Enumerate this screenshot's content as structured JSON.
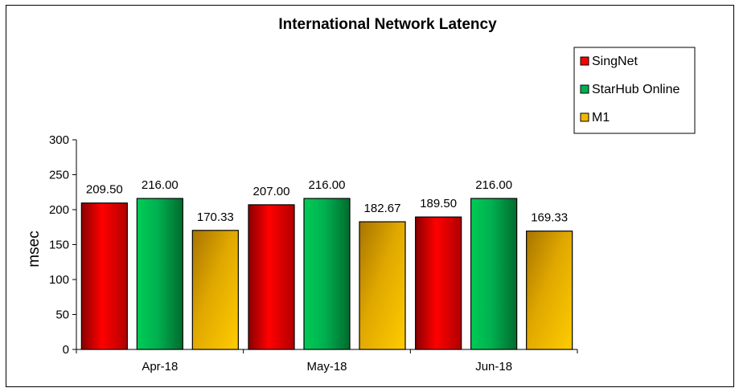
{
  "chart_data": {
    "type": "bar",
    "title": "International Network Latency",
    "xlabel": "",
    "ylabel": "msec",
    "ylim": [
      0,
      300
    ],
    "yticks": [
      0,
      50,
      100,
      150,
      200,
      250,
      300
    ],
    "categories": [
      "Apr-18",
      "May-18",
      "Jun-18"
    ],
    "series": [
      {
        "name": "SingNet",
        "values": [
          209.5,
          207.0,
          189.5
        ],
        "labels": [
          "209.50",
          "207.00",
          "189.50"
        ],
        "color": "#ff0000",
        "gradient": [
          "#8a0000",
          "#ff0000",
          "#b00000"
        ]
      },
      {
        "name": "StarHub Online",
        "values": [
          216.0,
          216.0,
          216.0
        ],
        "labels": [
          "216.00",
          "216.00",
          "216.00"
        ],
        "color": "#00b050",
        "gradient": [
          "#00cc55",
          "#00b050",
          "#006b2e"
        ]
      },
      {
        "name": "M1",
        "values": [
          170.33,
          182.67,
          169.33
        ],
        "labels": [
          "170.33",
          "182.67",
          "169.33"
        ],
        "color": "#f0b800",
        "gradient": [
          "#a87400",
          "#e0a800",
          "#ffcc00"
        ]
      }
    ],
    "legend_position": "top-right",
    "grid": false
  }
}
